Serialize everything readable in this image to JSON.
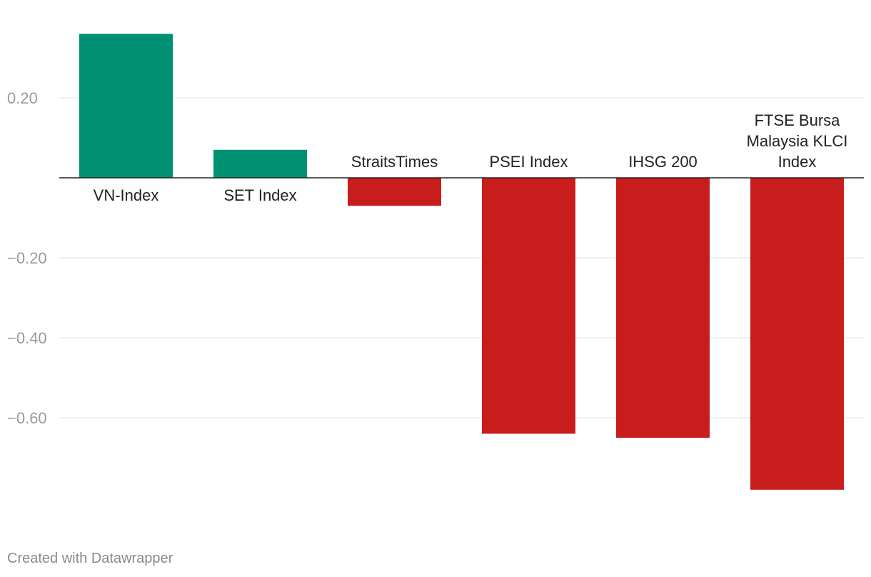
{
  "chart_data": {
    "type": "bar",
    "categories": [
      "VN-Index",
      "SET Index",
      "StraitsTimes",
      "PSEI Index",
      "IHSG 200",
      "FTSE Bursa Malaysia KLCI Index"
    ],
    "values": [
      0.36,
      0.07,
      -0.07,
      -0.64,
      -0.65,
      -0.78
    ],
    "yticks": [
      0.2,
      -0.2,
      -0.4,
      -0.6
    ],
    "ytick_labels": [
      "0.20",
      "−0.20",
      "−0.40",
      "−0.60"
    ],
    "ylim": [
      0.4,
      -0.84
    ],
    "grid": true,
    "colors": {
      "positive": "#009073",
      "negative": "#c91d1d",
      "gridline": "#e0e0e0",
      "baseline": "#222222",
      "tick_text": "#9a9a9a",
      "label_text": "#222222"
    }
  },
  "footer": {
    "text": "Created with Datawrapper"
  }
}
